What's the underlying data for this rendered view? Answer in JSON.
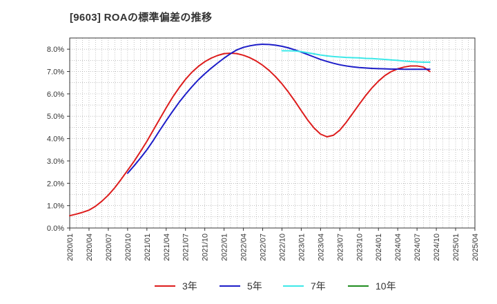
{
  "chart_data": {
    "type": "line",
    "title": "[9603]  ROAの標準偏差の推移",
    "xlabel": "",
    "ylabel": "",
    "x_ticks": [
      "2020/01",
      "2020/04",
      "2020/07",
      "2020/10",
      "2021/01",
      "2021/04",
      "2021/07",
      "2021/10",
      "2022/01",
      "2022/04",
      "2022/07",
      "2022/10",
      "2023/01",
      "2023/04",
      "2023/07",
      "2023/10",
      "2024/01",
      "2024/04",
      "2024/07",
      "2024/10",
      "2025/01",
      "2025/04"
    ],
    "y_ticks": [
      "0.0%",
      "1.0%",
      "2.0%",
      "3.0%",
      "4.0%",
      "5.0%",
      "6.0%",
      "7.0%",
      "8.0%"
    ],
    "ylim": [
      0,
      8.5
    ],
    "grid": true,
    "legend_position": "bottom",
    "series": [
      {
        "name": "3年",
        "color": "#dd1c1c",
        "start_index": 0,
        "values": [
          0.55,
          0.62,
          0.7,
          0.8,
          0.97,
          1.2,
          1.47,
          1.8,
          2.18,
          2.58,
          2.98,
          3.42,
          3.88,
          4.38,
          4.88,
          5.38,
          5.85,
          6.27,
          6.65,
          6.97,
          7.23,
          7.44,
          7.6,
          7.72,
          7.8,
          7.82,
          7.8,
          7.73,
          7.62,
          7.47,
          7.28,
          7.05,
          6.77,
          6.45,
          6.08,
          5.68,
          5.25,
          4.83,
          4.47,
          4.2,
          4.08,
          4.15,
          4.38,
          4.73,
          5.13,
          5.53,
          5.92,
          6.27,
          6.57,
          6.82,
          7.0,
          7.12,
          7.2,
          7.25,
          7.25,
          7.2,
          7.0
        ]
      },
      {
        "name": "5年",
        "color": "#1c1cc8",
        "start_index": 9,
        "values": [
          2.45,
          2.78,
          3.13,
          3.5,
          3.92,
          4.37,
          4.8,
          5.22,
          5.62,
          5.98,
          6.32,
          6.63,
          6.9,
          7.15,
          7.38,
          7.6,
          7.8,
          7.97,
          8.08,
          8.15,
          8.2,
          8.22,
          8.21,
          8.18,
          8.13,
          8.06,
          7.97,
          7.87,
          7.76,
          7.65,
          7.54,
          7.45,
          7.37,
          7.3,
          7.25,
          7.21,
          7.18,
          7.16,
          7.14,
          7.13,
          7.12,
          7.11,
          7.11,
          7.1,
          7.1,
          7.1,
          7.1,
          7.1
        ]
      },
      {
        "name": "7年",
        "color": "#3ce8e8",
        "start_index": 33,
        "values": [
          7.93,
          7.93,
          7.92,
          7.89,
          7.84,
          7.79,
          7.74,
          7.7,
          7.67,
          7.65,
          7.63,
          7.62,
          7.61,
          7.59,
          7.58,
          7.56,
          7.54,
          7.52,
          7.5,
          7.47,
          7.45,
          7.43,
          7.42,
          7.42
        ]
      },
      {
        "name": "10年",
        "color": "#1e8c1e",
        "start_index": 0,
        "values": []
      }
    ]
  }
}
